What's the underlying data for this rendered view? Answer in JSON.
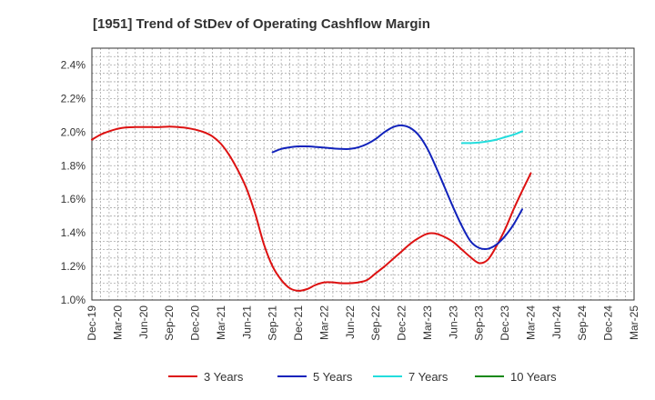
{
  "chart_data": {
    "type": "line",
    "title": "[1951]  Trend of StDev of Operating Cashflow Margin",
    "xlabel": "",
    "ylabel": "",
    "ylim": [
      1.0,
      2.5
    ],
    "y_ticks": [
      "1.0%",
      "1.2%",
      "1.4%",
      "1.6%",
      "1.8%",
      "2.0%",
      "2.2%",
      "2.4%"
    ],
    "y_tick_values": [
      1.0,
      1.2,
      1.4,
      1.6,
      1.8,
      2.0,
      2.2,
      2.4
    ],
    "x_ticks": [
      "Dec-19",
      "Mar-20",
      "Jun-20",
      "Sep-20",
      "Dec-20",
      "Mar-21",
      "Jun-21",
      "Sep-21",
      "Dec-21",
      "Mar-22",
      "Jun-22",
      "Sep-22",
      "Dec-22",
      "Mar-23",
      "Jun-23",
      "Sep-23",
      "Dec-23",
      "Mar-24",
      "Jun-24",
      "Sep-24",
      "Dec-24",
      "Mar-25"
    ],
    "grid": true,
    "legend_position": "bottom",
    "series": [
      {
        "name": "3 Years",
        "color": "#dd1111",
        "points": [
          [
            "Dec-19",
            1.955
          ],
          [
            "Jan-20",
            1.985
          ],
          [
            "Feb-20",
            2.005
          ],
          [
            "Mar-20",
            2.02
          ],
          [
            "Apr-20",
            2.028
          ],
          [
            "May-20",
            2.03
          ],
          [
            "Jun-20",
            2.03
          ],
          [
            "Jul-20",
            2.03
          ],
          [
            "Aug-20",
            2.03
          ],
          [
            "Sep-20",
            2.033
          ],
          [
            "Oct-20",
            2.03
          ],
          [
            "Nov-20",
            2.025
          ],
          [
            "Dec-20",
            2.015
          ],
          [
            "Jan-21",
            2.0
          ],
          [
            "Feb-21",
            1.975
          ],
          [
            "Mar-21",
            1.93
          ],
          [
            "Apr-21",
            1.86
          ],
          [
            "May-21",
            1.77
          ],
          [
            "Jun-21",
            1.66
          ],
          [
            "Jul-21",
            1.51
          ],
          [
            "Aug-21",
            1.33
          ],
          [
            "Sep-21",
            1.2
          ],
          [
            "Oct-21",
            1.12
          ],
          [
            "Nov-21",
            1.07
          ],
          [
            "Dec-21",
            1.055
          ],
          [
            "Jan-22",
            1.065
          ],
          [
            "Feb-22",
            1.09
          ],
          [
            "Mar-22",
            1.105
          ],
          [
            "Apr-22",
            1.105
          ],
          [
            "May-22",
            1.1
          ],
          [
            "Jun-22",
            1.1
          ],
          [
            "Jul-22",
            1.105
          ],
          [
            "Aug-22",
            1.12
          ],
          [
            "Sep-22",
            1.16
          ],
          [
            "Oct-22",
            1.2
          ],
          [
            "Nov-22",
            1.245
          ],
          [
            "Dec-22",
            1.29
          ],
          [
            "Jan-23",
            1.335
          ],
          [
            "Feb-23",
            1.37
          ],
          [
            "Mar-23",
            1.395
          ],
          [
            "Apr-23",
            1.395
          ],
          [
            "May-23",
            1.375
          ],
          [
            "Jun-23",
            1.345
          ],
          [
            "Jul-23",
            1.3
          ],
          [
            "Aug-23",
            1.255
          ],
          [
            "Sep-23",
            1.22
          ],
          [
            "Oct-23",
            1.24
          ],
          [
            "Nov-23",
            1.32
          ],
          [
            "Dec-23",
            1.42
          ],
          [
            "Jan-24",
            1.54
          ],
          [
            "Feb-24",
            1.65
          ],
          [
            "Mar-24",
            1.755
          ]
        ]
      },
      {
        "name": "5 Years",
        "color": "#1122bb",
        "points": [
          [
            "Sep-21",
            1.88
          ],
          [
            "Oct-21",
            1.9
          ],
          [
            "Nov-21",
            1.91
          ],
          [
            "Dec-21",
            1.915
          ],
          [
            "Jan-22",
            1.915
          ],
          [
            "Feb-22",
            1.912
          ],
          [
            "Mar-22",
            1.908
          ],
          [
            "Apr-22",
            1.903
          ],
          [
            "May-22",
            1.9
          ],
          [
            "Jun-22",
            1.9
          ],
          [
            "Jul-22",
            1.91
          ],
          [
            "Aug-22",
            1.93
          ],
          [
            "Sep-22",
            1.96
          ],
          [
            "Oct-22",
            2.0
          ],
          [
            "Nov-22",
            2.03
          ],
          [
            "Dec-22",
            2.04
          ],
          [
            "Jan-23",
            2.025
          ],
          [
            "Feb-23",
            1.98
          ],
          [
            "Mar-23",
            1.9
          ],
          [
            "Apr-23",
            1.79
          ],
          [
            "May-23",
            1.67
          ],
          [
            "Jun-23",
            1.55
          ],
          [
            "Jul-23",
            1.44
          ],
          [
            "Aug-23",
            1.35
          ],
          [
            "Sep-23",
            1.31
          ],
          [
            "Oct-23",
            1.305
          ],
          [
            "Nov-23",
            1.33
          ],
          [
            "Dec-23",
            1.38
          ],
          [
            "Jan-24",
            1.45
          ],
          [
            "Feb-24",
            1.54
          ]
        ]
      },
      {
        "name": "7 Years",
        "color": "#22dddd",
        "points": [
          [
            "Jul-23",
            1.935
          ],
          [
            "Aug-23",
            1.935
          ],
          [
            "Sep-23",
            1.938
          ],
          [
            "Oct-23",
            1.945
          ],
          [
            "Nov-23",
            1.955
          ],
          [
            "Dec-23",
            1.97
          ],
          [
            "Jan-24",
            1.985
          ],
          [
            "Feb-24",
            2.005
          ]
        ]
      },
      {
        "name": "10 Years",
        "color": "#118811",
        "points": []
      }
    ]
  }
}
